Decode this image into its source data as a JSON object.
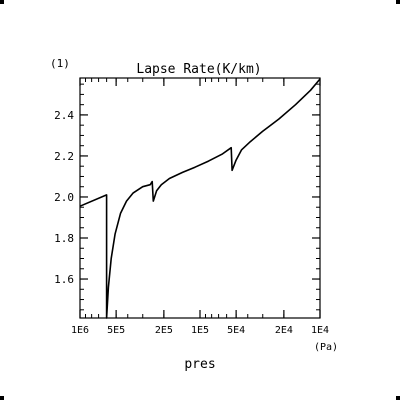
{
  "chart_data": {
    "type": "line",
    "panel_label": "(1)",
    "title": "Lapse Rate(K/km)",
    "xlabel": "pres",
    "xunit": "(Pa)",
    "x_scale": "log",
    "x_reversed": true,
    "xlim": [
      1000000,
      10000
    ],
    "ylim": [
      1.41,
      2.58
    ],
    "x_ticks": [
      {
        "value": 1000000,
        "label": "1E6"
      },
      {
        "value": 500000,
        "label": "5E5"
      },
      {
        "value": 200000,
        "label": "2E5"
      },
      {
        "value": 100000,
        "label": "1E5"
      },
      {
        "value": 50000,
        "label": "5E4"
      },
      {
        "value": 20000,
        "label": "2E4"
      },
      {
        "value": 10000,
        "label": "1E4"
      }
    ],
    "y_ticks": [
      {
        "value": 1.6,
        "label": "1.6"
      },
      {
        "value": 1.8,
        "label": "1.8"
      },
      {
        "value": 2.0,
        "label": "2.0"
      },
      {
        "value": 2.2,
        "label": "2.2"
      },
      {
        "value": 2.4,
        "label": "2.4"
      }
    ],
    "series": [
      {
        "points": [
          [
            1000000,
            1.955
          ],
          [
            600000,
            2.01
          ],
          [
            600000,
            1.41
          ],
          [
            580000,
            1.56
          ],
          [
            550000,
            1.7
          ],
          [
            510000,
            1.82
          ],
          [
            460000,
            1.92
          ],
          [
            410000,
            1.98
          ],
          [
            360000,
            2.02
          ],
          [
            300000,
            2.05
          ],
          [
            260000,
            2.06
          ],
          [
            250000,
            2.075
          ],
          [
            245000,
            1.98
          ],
          [
            230000,
            2.03
          ],
          [
            210000,
            2.06
          ],
          [
            180000,
            2.09
          ],
          [
            140000,
            2.12
          ],
          [
            110000,
            2.145
          ],
          [
            85000,
            2.175
          ],
          [
            65000,
            2.21
          ],
          [
            55000,
            2.24
          ],
          [
            54000,
            2.13
          ],
          [
            50000,
            2.18
          ],
          [
            45000,
            2.23
          ],
          [
            38000,
            2.27
          ],
          [
            30000,
            2.32
          ],
          [
            22000,
            2.38
          ],
          [
            16000,
            2.45
          ],
          [
            12000,
            2.52
          ],
          [
            10000,
            2.575
          ]
        ]
      }
    ]
  }
}
